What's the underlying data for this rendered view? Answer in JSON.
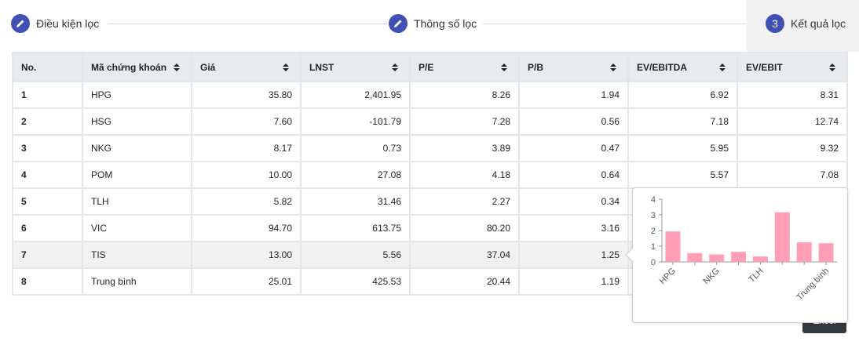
{
  "stepper": {
    "steps": [
      {
        "label": "Điều kiện lọc",
        "icon": "pencil-icon",
        "marker": ""
      },
      {
        "label": "Thông số lọc",
        "icon": "pencil-icon",
        "marker": ""
      },
      {
        "label": "Kết quả lọc",
        "icon": "",
        "marker": "3"
      }
    ]
  },
  "table": {
    "headers": [
      "No.",
      "Mã chứng khoán",
      "Giá",
      "LNST",
      "P/E",
      "P/B",
      "EV/EBITDA",
      "EV/EBIT"
    ],
    "rows": [
      [
        "1",
        "HPG",
        "35.80",
        "2,401.95",
        "8.26",
        "1.94",
        "6.92",
        "8.31"
      ],
      [
        "2",
        "HSG",
        "7.60",
        "-101.79",
        "7.28",
        "0.56",
        "7.18",
        "12.74"
      ],
      [
        "3",
        "NKG",
        "8.17",
        "0.73",
        "3.89",
        "0.47",
        "5.95",
        "9.32"
      ],
      [
        "4",
        "POM",
        "10.00",
        "27.08",
        "4.18",
        "0.64",
        "5.57",
        "7.08"
      ],
      [
        "5",
        "TLH",
        "5.82",
        "31.46",
        "2.27",
        "0.34",
        "",
        ""
      ],
      [
        "6",
        "VIC",
        "94.70",
        "613.75",
        "80.20",
        "3.16",
        "",
        ""
      ],
      [
        "7",
        "TIS",
        "13.00",
        "5.56",
        "37.04",
        "1.25",
        "",
        ""
      ],
      [
        "8",
        "Trung bình",
        "25.01",
        "425.53",
        "20.44",
        "1.19",
        "",
        ""
      ]
    ],
    "highlighted_row": 6
  },
  "button": {
    "label": "Excel"
  },
  "colors": {
    "accent": "#3f51b5",
    "bar": "#ff9eb5",
    "button": "#343a40"
  },
  "chart_data": {
    "type": "bar",
    "categories": [
      "HPG",
      "HSG",
      "NKG",
      "POM",
      "TLH",
      "VIC",
      "TIS",
      "Trung bình"
    ],
    "visible_tick_labels": [
      "HPG",
      "NKG",
      "TLH",
      "Trung bình"
    ],
    "values": [
      1.94,
      0.56,
      0.47,
      0.64,
      0.34,
      3.16,
      1.25,
      1.19
    ],
    "ylim": [
      0,
      4
    ],
    "yticks": [
      0,
      1,
      2,
      3,
      4
    ],
    "title": "",
    "xlabel": "",
    "ylabel": ""
  }
}
